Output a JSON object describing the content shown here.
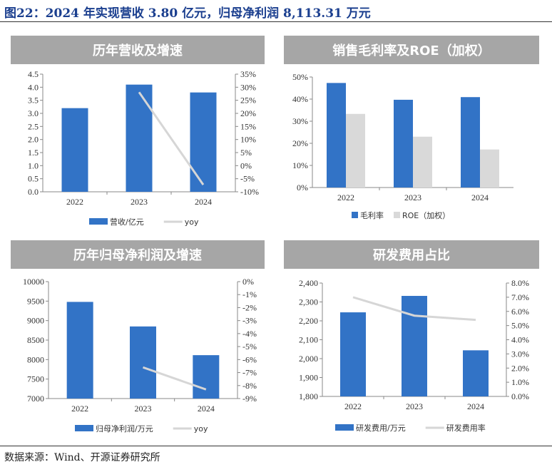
{
  "title": "图22：2024 年实现营收 3.80 亿元，归母净利润 8,113.31 万元",
  "source": "数据来源：Wind、开源证券研究所",
  "colors": {
    "bar": "#3273c6",
    "gray": "#d9d9d9",
    "line": "#d6d6d6",
    "header": "#a6a6a6"
  },
  "chart_data": [
    {
      "type": "bar",
      "title": "历年营收及增速",
      "categories": [
        "2022",
        "2023",
        "2024"
      ],
      "series": [
        {
          "name": "营收/亿元",
          "kind": "bar",
          "axis": "left",
          "values": [
            3.2,
            4.1,
            3.8
          ]
        },
        {
          "name": "yoy",
          "kind": "line",
          "axis": "right",
          "values": [
            null,
            28.1,
            -7.3
          ]
        }
      ],
      "ylim": [
        0,
        4.5
      ],
      "yticks": [
        "0.0",
        "0.5",
        "1.0",
        "1.5",
        "2.0",
        "2.5",
        "3.0",
        "3.5",
        "4.0",
        "4.5"
      ],
      "y2lim": [
        -10,
        35
      ],
      "y2ticks": [
        "-10%",
        "-5%",
        "0%",
        "5%",
        "10%",
        "15%",
        "20%",
        "25%",
        "30%",
        "35%"
      ],
      "legend": "bottom"
    },
    {
      "type": "bar",
      "title": "销售毛利率及ROE（加权）",
      "categories": [
        "2022",
        "2023",
        "2024"
      ],
      "series": [
        {
          "name": "毛利率",
          "kind": "bar",
          "axis": "left",
          "values": [
            47.3,
            39.7,
            40.9
          ]
        },
        {
          "name": "ROE（加权）",
          "kind": "bar",
          "axis": "left",
          "values": [
            33.3,
            23.0,
            17.2
          ]
        }
      ],
      "ylim": [
        0,
        50
      ],
      "yticks": [
        "0%",
        "10%",
        "20%",
        "30%",
        "40%",
        "50%"
      ],
      "legend": "bottom"
    },
    {
      "type": "bar",
      "title": "历年归母净利润及增速",
      "categories": [
        "2022",
        "2023",
        "2024"
      ],
      "series": [
        {
          "name": "归母净利润/万元",
          "kind": "bar",
          "axis": "left",
          "values": [
            9480,
            8850,
            8113.31
          ]
        },
        {
          "name": "yoy",
          "kind": "line",
          "axis": "right",
          "values": [
            null,
            -6.6,
            -8.3
          ]
        }
      ],
      "ylim": [
        7000,
        10000
      ],
      "yticks": [
        "7000",
        "7500",
        "8000",
        "8500",
        "9000",
        "9500",
        "10000"
      ],
      "y2lim": [
        -9,
        0
      ],
      "y2ticks": [
        "-9%",
        "-8%",
        "-7%",
        "-6%",
        "-5%",
        "-4%",
        "-3%",
        "-2%",
        "-1%",
        "0%"
      ],
      "legend": "bottom"
    },
    {
      "type": "bar",
      "title": "研发费用占比",
      "categories": [
        "2022",
        "2023",
        "2024"
      ],
      "series": [
        {
          "name": "研发费用/万元",
          "kind": "bar",
          "axis": "left",
          "values": [
            2245,
            2332,
            2044
          ]
        },
        {
          "name": "研发费用率",
          "kind": "line",
          "axis": "right",
          "values": [
            7.0,
            5.7,
            5.4
          ]
        }
      ],
      "ylim": [
        1800,
        2400
      ],
      "yticks": [
        "1,800",
        "1,900",
        "2,000",
        "2,100",
        "2,200",
        "2,300",
        "2,400"
      ],
      "y2lim": [
        0,
        8
      ],
      "y2ticks": [
        "0.0%",
        "1.0%",
        "2.0%",
        "3.0%",
        "4.0%",
        "5.0%",
        "6.0%",
        "7.0%",
        "8.0%"
      ],
      "legend": "bottom"
    }
  ]
}
